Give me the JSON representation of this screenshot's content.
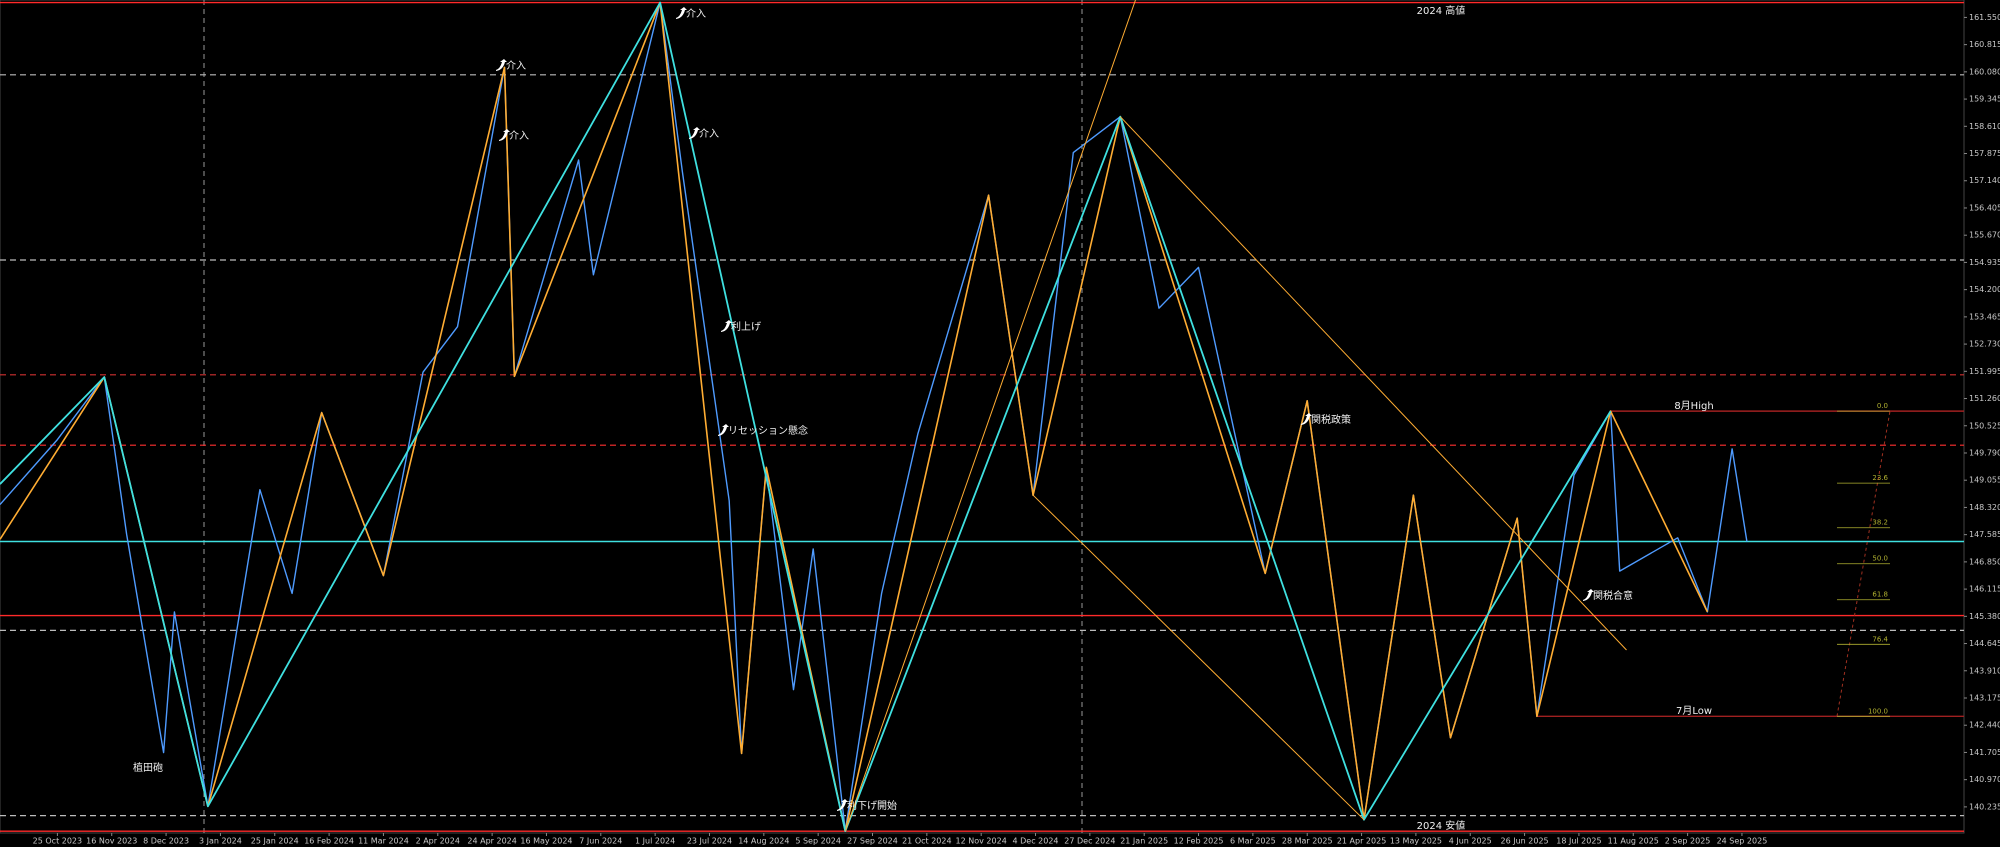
{
  "chart_data": {
    "type": "line",
    "ylim": [
      139.53,
      162.02
    ],
    "yticks": [
      {
        "value": 161.55,
        "label": "161.550"
      },
      {
        "value": 160.815,
        "label": "160.815"
      },
      {
        "value": 160.08,
        "label": "160.080"
      },
      {
        "value": 159.345,
        "label": "159.345"
      },
      {
        "value": 158.61,
        "label": "158.610"
      },
      {
        "value": 157.875,
        "label": "157.875"
      },
      {
        "value": 157.14,
        "label": "157.140"
      },
      {
        "value": 156.405,
        "label": "156.405"
      },
      {
        "value": 155.67,
        "label": "155.670"
      },
      {
        "value": 154.935,
        "label": "154.935"
      },
      {
        "value": 154.2,
        "label": "154.200"
      },
      {
        "value": 153.465,
        "label": "153.465"
      },
      {
        "value": 152.73,
        "label": "152.730"
      },
      {
        "value": 151.995,
        "label": "151.995"
      },
      {
        "value": 151.26,
        "label": "151.260"
      },
      {
        "value": 150.525,
        "label": "150.525"
      },
      {
        "value": 149.79,
        "label": "149.790"
      },
      {
        "value": 149.055,
        "label": "149.055"
      },
      {
        "value": 148.32,
        "label": "148.320"
      },
      {
        "value": 147.585,
        "label": "147.585"
      },
      {
        "value": 146.85,
        "label": "146.850"
      },
      {
        "value": 146.115,
        "label": "146.115"
      },
      {
        "value": 145.38,
        "label": "145.380"
      },
      {
        "value": 144.645,
        "label": "144.645"
      },
      {
        "value": 143.91,
        "label": "143.910"
      },
      {
        "value": 143.175,
        "label": "143.175"
      },
      {
        "value": 142.44,
        "label": "142.440"
      },
      {
        "value": 141.705,
        "label": "141.705"
      },
      {
        "value": 140.97,
        "label": "140.970"
      },
      {
        "value": 140.235,
        "label": "140.235"
      }
    ],
    "xlim": [
      "2023-10-02",
      "2025-12-23"
    ],
    "xticks": [
      {
        "value": "2023-10-25",
        "label": "25 Oct 2023"
      },
      {
        "value": "2023-11-16",
        "label": "16 Nov 2023"
      },
      {
        "value": "2023-12-08",
        "label": "8 Dec 2023"
      },
      {
        "value": "2024-01-03",
        "label": "3 Jan 2024"
      },
      {
        "value": "2024-01-25",
        "label": "25 Jan 2024"
      },
      {
        "value": "2024-02-16",
        "label": "16 Feb 2024"
      },
      {
        "value": "2024-03-11",
        "label": "11 Mar 2024"
      },
      {
        "value": "2024-04-02",
        "label": "2 Apr 2024"
      },
      {
        "value": "2024-04-24",
        "label": "24 Apr 2024"
      },
      {
        "value": "2024-05-16",
        "label": "16 May 2024"
      },
      {
        "value": "2024-06-07",
        "label": "7 Jun 2024"
      },
      {
        "value": "2024-07-01",
        "label": "1 Jul 2024"
      },
      {
        "value": "2024-07-23",
        "label": "23 Jul 2024"
      },
      {
        "value": "2024-08-14",
        "label": "14 Aug 2024"
      },
      {
        "value": "2024-09-05",
        "label": "5 Sep 2024"
      },
      {
        "value": "2024-09-27",
        "label": "27 Sep 2024"
      },
      {
        "value": "2024-10-21",
        "label": "21 Oct 2024"
      },
      {
        "value": "2024-11-12",
        "label": "12 Nov 2024"
      },
      {
        "value": "2024-12-04",
        "label": "4 Dec 2024"
      },
      {
        "value": "2024-12-27",
        "label": "27 Dec 2024"
      },
      {
        "value": "2025-01-21",
        "label": "21 Jan 2025"
      },
      {
        "value": "2025-02-12",
        "label": "12 Feb 2025"
      },
      {
        "value": "2025-03-06",
        "label": "6 Mar 2025"
      },
      {
        "value": "2025-03-28",
        "label": "28 Mar 2025"
      },
      {
        "value": "2025-04-21",
        "label": "21 Apr 2025"
      },
      {
        "value": "2025-05-13",
        "label": "13 May 2025"
      },
      {
        "value": "2025-06-04",
        "label": "4 Jun 2025"
      },
      {
        "value": "2025-06-26",
        "label": "26 Jun 2025"
      },
      {
        "value": "2025-07-18",
        "label": "18 Jul 2025"
      },
      {
        "value": "2025-08-11",
        "label": "11 Aug 2025"
      },
      {
        "value": "2025-09-02",
        "label": "2 Sep 2025"
      },
      {
        "value": "2025-09-24",
        "label": "24 Sep 2025"
      }
    ],
    "series": [
      {
        "color": "#4f9bff",
        "width": 1.4,
        "x": [
          "2023-10-02",
          "2023-10-25",
          "2023-11-13",
          "2023-11-22",
          "2023-12-07",
          "2023-12-12",
          "2023-12-28",
          "2024-01-19",
          "2024-02-01",
          "2024-02-13",
          "2024-03-11",
          "2024-03-27",
          "2024-04-10",
          "2024-04-29",
          "2024-05-03",
          "2024-05-29",
          "2024-06-04",
          "2024-07-03",
          "2024-07-12",
          "2024-07-31",
          "2024-08-05",
          "2024-08-15",
          "2024-08-26",
          "2024-09-03",
          "2024-09-16",
          "2024-10-01",
          "2024-10-17",
          "2024-11-15",
          "2024-12-03",
          "2024-12-20",
          "2025-01-10",
          "2025-01-27",
          "2025-02-12",
          "2025-03-11",
          "2025-03-28",
          "2025-04-22",
          "2025-05-12",
          "2025-05-27",
          "2025-06-23",
          "2025-07-01",
          "2025-07-16",
          "2025-08-01",
          "2025-08-05",
          "2025-08-29",
          "2025-09-10",
          "2025-09-20",
          "2025-09-26"
        ],
        "values": [
          148.4,
          150.15,
          151.84,
          147.6,
          141.7,
          145.5,
          140.25,
          148.8,
          146.0,
          150.88,
          146.48,
          151.97,
          153.2,
          160.2,
          151.86,
          157.7,
          154.6,
          161.95,
          157.4,
          148.5,
          141.68,
          149.4,
          143.4,
          147.2,
          139.58,
          146.0,
          150.3,
          156.75,
          148.65,
          157.9,
          158.87,
          153.7,
          154.8,
          146.54,
          151.2,
          139.89,
          148.65,
          142.1,
          148.03,
          142.68,
          149.19,
          150.92,
          146.6,
          147.5,
          145.5,
          149.9,
          147.4
        ]
      },
      {
        "color": "#ffad33",
        "width": 1.6,
        "x": [
          "2023-10-02",
          "2023-11-13",
          "2023-12-28",
          "2024-02-13",
          "2024-03-11",
          "2024-04-29",
          "2024-05-03",
          "2024-07-03",
          "2024-08-05",
          "2024-08-15",
          "2024-09-16",
          "2024-11-15",
          "2024-12-03",
          "2025-01-10",
          "2025-03-11",
          "2025-03-28",
          "2025-04-22",
          "2025-05-12",
          "2025-05-27",
          "2025-06-23",
          "2025-07-01",
          "2025-08-01",
          "2025-09-10"
        ],
        "values": [
          147.46,
          151.84,
          140.25,
          150.88,
          146.48,
          160.2,
          151.86,
          161.95,
          141.68,
          149.4,
          139.58,
          156.75,
          148.65,
          158.87,
          146.54,
          151.2,
          139.89,
          148.65,
          142.1,
          148.03,
          142.68,
          150.92,
          145.5
        ]
      },
      {
        "color": "#3fe0e0",
        "width": 1.8,
        "x": [
          "2023-10-02",
          "2023-11-13",
          "2023-12-28",
          "2024-07-03",
          "2024-09-16",
          "2025-01-10",
          "2025-04-22",
          "2025-08-01"
        ],
        "values": [
          148.95,
          151.84,
          140.25,
          161.95,
          139.58,
          158.87,
          139.89,
          150.92
        ]
      },
      {
        "color": "#ffad33",
        "width": 1,
        "x": [
          "2024-09-16",
          "2025-01-17"
        ],
        "values": [
          139.58,
          162.02
        ]
      },
      {
        "color": "#ffad33",
        "width": 1,
        "x": [
          "2024-12-03",
          "2025-04-22"
        ],
        "values": [
          148.65,
          139.89
        ]
      },
      {
        "color": "#ffad33",
        "width": 1,
        "x": [
          "2025-01-10",
          "2025-08-08"
        ],
        "values": [
          158.87,
          144.47
        ]
      }
    ],
    "levels": [
      {
        "value": 161.95,
        "color": "#ff2a2a",
        "style": "solid",
        "label": "2024 高値"
      },
      {
        "value": 139.58,
        "color": "#ff2a2a",
        "style": "solid",
        "label": "2024 安値"
      },
      {
        "value": 160.0,
        "color": "#bbbbbb",
        "style": "dashed"
      },
      {
        "value": 155.0,
        "color": "#bbbbbb",
        "style": "dashed"
      },
      {
        "value": 151.9,
        "color": "#d03030",
        "style": "dashed"
      },
      {
        "value": 150.0,
        "color": "#ff3030",
        "style": "dashed"
      },
      {
        "value": 147.4,
        "color": "#3fe0e0",
        "style": "solid"
      },
      {
        "value": 145.4,
        "color": "#ff2a2a",
        "style": "solid"
      },
      {
        "value": 145.0,
        "color": "#bbbbbb",
        "style": "dashed"
      },
      {
        "value": 140.0,
        "color": "#bbbbbb",
        "style": "dashed"
      },
      {
        "value": 150.92,
        "color": "#a02020",
        "style": "solid",
        "from": "2025-08-01",
        "label": "8月High"
      },
      {
        "value": 142.68,
        "color": "#a02020",
        "style": "solid",
        "from": "2025-07-01",
        "label": "7月Low"
      }
    ],
    "fibonacci": {
      "high": 150.92,
      "low": 142.68,
      "color": "#b0b030",
      "levels": [
        {
          "value": 0,
          "label": "0.0"
        },
        23.6,
        38.2,
        {
          "value": 50,
          "label": "50.0"
        },
        61.8,
        76.4,
        {
          "value": 100,
          "label": "100.0"
        }
      ]
    },
    "annotations": [
      "介入",
      "介入",
      "介入",
      "介入",
      "利上げ",
      "リセッション懸念",
      "関税政策",
      "関税合意",
      "利下げ開始",
      "植田砲"
    ]
  }
}
